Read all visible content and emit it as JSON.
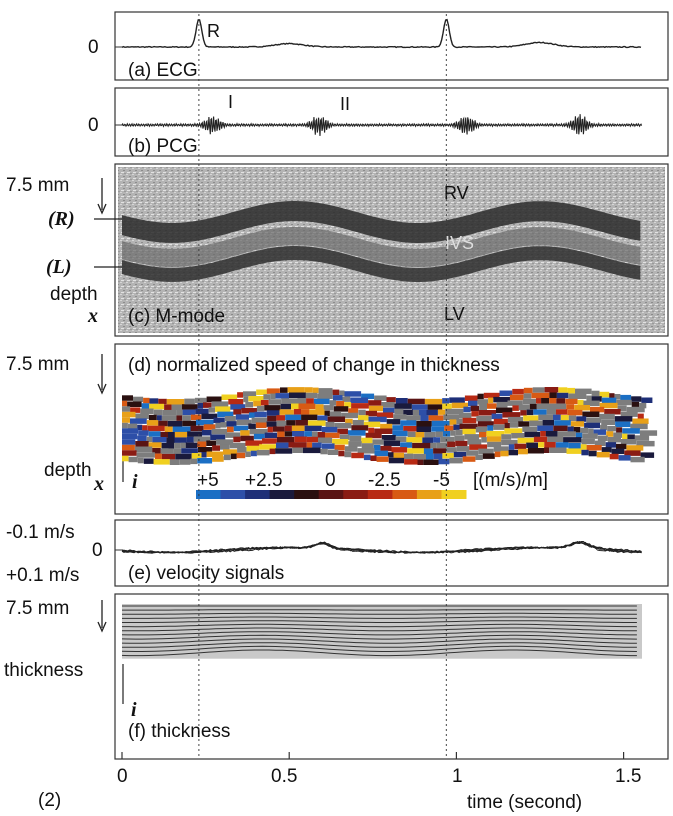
{
  "figure_label": "(2)",
  "x_axis": {
    "label": "time (second)",
    "ticks": [
      "0",
      "0.5",
      "1",
      "1.5"
    ],
    "range": [
      0,
      1.6
    ]
  },
  "markers": {
    "r_wave_times": [
      0.23,
      0.97
    ]
  },
  "colors": {
    "panel_bg": "#ffffff",
    "mmode_bg": "#b8b8b8",
    "thickness_bg": "#c9c9c9",
    "colormap": [
      "#1b6fc4",
      "#2d4fa8",
      "#1e2f78",
      "#1a1a3c",
      "#2a1010",
      "#5a1414",
      "#8a1c14",
      "#b82a14",
      "#d85a14",
      "#e8a018",
      "#f0d020"
    ]
  },
  "panels": {
    "ecg": {
      "label": "(a) ECG",
      "zero": "0",
      "peak_label": "R"
    },
    "pcg": {
      "label": "(b) PCG",
      "zero": "0",
      "sound1": "I",
      "sound2": "II"
    },
    "mmode": {
      "label": "(c) M-mode",
      "depth_top": "7.5 mm",
      "marker_r": "(R)",
      "marker_l": "(L)",
      "depth_label": "depth",
      "axis_symbol": "x",
      "rv": "RV",
      "ivs": "IVS",
      "lv": "LV"
    },
    "speed": {
      "label": "(d) normalized speed of change in thickness",
      "depth_top": "7.5 mm",
      "depth_label": "depth",
      "axis_symbol": "x",
      "index_symbol": "i",
      "colorbar_ticks": [
        "+5",
        "+2.5",
        "0",
        "-2.5",
        "-5"
      ],
      "colorbar_unit": "[(m/s)/m]"
    },
    "velocity": {
      "label": "(e) velocity signals",
      "top": "-0.1 m/s",
      "zero": "0",
      "bottom": "+0.1 m/s"
    },
    "thickness": {
      "label": "(f) thickness",
      "depth_top": "7.5 mm",
      "side_label": "thickness",
      "index_symbol": "i"
    }
  },
  "chart_data": [
    {
      "type": "line",
      "title": "(a) ECG",
      "xlabel": "time (second)",
      "ylabel": "",
      "x": [
        0,
        0.2,
        0.23,
        0.26,
        0.4,
        0.6,
        0.9,
        0.97,
        1.0,
        1.2,
        1.4,
        1.55
      ],
      "series": [
        {
          "values": [
            0,
            0.02,
            1.0,
            0.05,
            0.02,
            0.1,
            0.01,
            1.0,
            0.08,
            0.2,
            0.02,
            0.01
          ]
        }
      ],
      "xlim": [
        0,
        1.6
      ]
    },
    {
      "type": "line",
      "title": "(b) PCG",
      "xlabel": "time (second)",
      "ylabel": "",
      "bursts": [
        {
          "name": "I",
          "t": 0.27
        },
        {
          "name": "II",
          "t": 0.59
        },
        {
          "name": "I",
          "t": 1.03
        },
        {
          "name": "II",
          "t": 1.37
        }
      ],
      "xlim": [
        0,
        1.6
      ]
    },
    {
      "type": "heatmap",
      "title": "(c) M-mode",
      "ylabel": "depth",
      "xlabel": "time (second)",
      "regions": [
        "RV",
        "IVS",
        "LV"
      ],
      "xlim": [
        0,
        1.6
      ]
    },
    {
      "type": "heatmap",
      "title": "(d) normalized speed of change in thickness",
      "ylabel": "depth",
      "colorbar": {
        "range": [
          5,
          -5
        ],
        "unit": "[(m/s)/m]"
      },
      "xlim": [
        0,
        1.6
      ]
    },
    {
      "type": "line",
      "title": "(e) velocity signals",
      "ylabel": "",
      "ylim": [
        -0.1,
        0.1
      ],
      "x": [
        0,
        0.2,
        0.4,
        0.6,
        0.8,
        1.0,
        1.2,
        1.4,
        1.55
      ],
      "series": [
        {
          "values": [
            0.0,
            -0.01,
            0.005,
            -0.02,
            0.005,
            0.0,
            0.005,
            -0.015,
            0.0
          ]
        }
      ],
      "xlim": [
        0,
        1.6
      ]
    },
    {
      "type": "heatmap",
      "title": "(f) thickness",
      "ylabel": "thickness",
      "xlim": [
        0,
        1.6
      ]
    }
  ]
}
